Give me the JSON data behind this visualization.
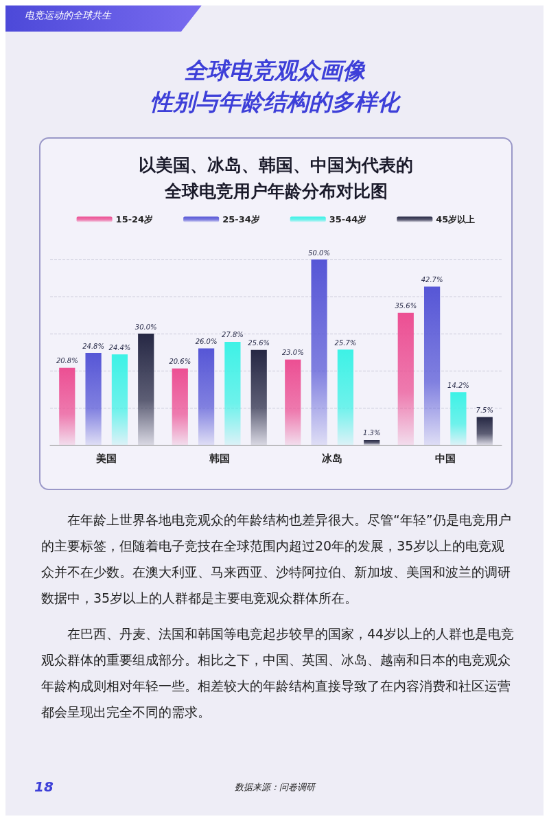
{
  "chart_data": {
    "type": "bar",
    "title": "全球电竞观众画像",
    "subtitle": "性别与年龄结构的多样化",
    "categories": [
      "美国",
      "韩国",
      "冰岛",
      "中国"
    ],
    "series": [
      {
        "name": "15-24岁",
        "color": "#ec4f93",
        "values": [
          20.8,
          20.6,
          23.0,
          35.6
        ],
        "value_labels": [
          "20.8%",
          "20.6%",
          "23.0%",
          "35.6%"
        ]
      },
      {
        "name": "25-34岁",
        "color": "#5656d6",
        "values": [
          24.8,
          26.0,
          50.0,
          42.7
        ],
        "value_labels": [
          "24.8%",
          "26.0%",
          "50.0%",
          "42.7%"
        ]
      },
      {
        "name": "35-44岁",
        "color": "#3df2e6",
        "values": [
          24.4,
          27.8,
          25.7,
          14.2
        ],
        "value_labels": [
          "24.4%",
          "27.8%",
          "25.7%",
          "14.2%"
        ]
      },
      {
        "name": "45岁以上",
        "color": "#262844",
        "values": [
          30.0,
          25.6,
          1.3,
          7.5
        ],
        "value_labels": [
          "30.0%",
          "25.6%",
          "1.3%",
          "7.5%"
        ]
      }
    ],
    "grid": "y",
    "legend": "top",
    "annotations": [
      "电竞运动的全球共生",
      "以美国、冰岛、韩国、中国为代表的全球电竞用户年龄分布对比图",
      "在年龄上世界各地电竞观众的年龄结构也差异很大。尽管“年轻”仍是电竞用户的主要标签，但随着电子竞技在全球范围内超过20年的发展，35岁以上的电竞观众并不在少数。在澳大利亚、马来西亚、沙特阿拉伯、新加坡、美国和波兰的调研数据中，35岁以上的人群都是主要电竞观众群体所在。",
      "在巴西、丹麦、法国和韩国等电竞起步较早的国家，44岁以上的人群也是电竞观众群体的重要组成部分。相比之下，中国、英国、冰岛、越南和日本的电竞观众年龄构成则相对年轻一些。相差较大的年龄结构直接导致了在内容消费和社区运营都会呈现出完全不同的需求。",
      "18",
      "数据来源：问卷调研"
    ]
  }
}
